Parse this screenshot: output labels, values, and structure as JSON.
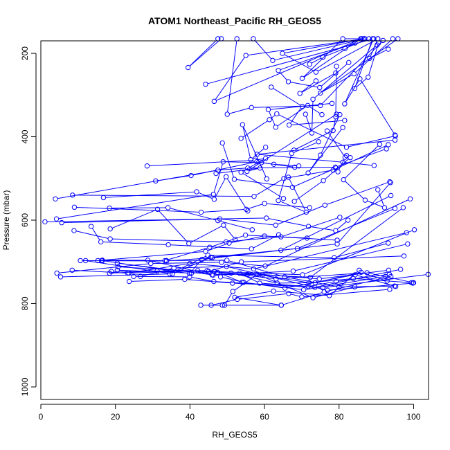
{
  "chart_data": {
    "type": "line",
    "title": "ATOM1 Northeast_Pacific RH_GEOS5",
    "xlabel": "RH_GEOS5",
    "ylabel": "Pressure (mbar)",
    "xlim": [
      0,
      104
    ],
    "ylim": [
      1030,
      170
    ],
    "y_reversed": true,
    "x_ticks": [
      0,
      20,
      40,
      60,
      80,
      100
    ],
    "y_ticks": [
      200,
      400,
      600,
      800,
      1000
    ],
    "grid": false,
    "legend": "none",
    "color": "#0000ff",
    "marker": "open-circle",
    "series": [
      {
        "x": [
          47.5,
          39.5,
          48.4
        ],
        "y": [
          165,
          234,
          165
        ]
      },
      {
        "x": [
          86.9,
          62.2,
          57.0
        ],
        "y": [
          165,
          217,
          165
        ]
      },
      {
        "x": [
          93.2,
          88.2,
          90.4
        ],
        "y": [
          190,
          212,
          165
        ]
      },
      {
        "x": [
          86.4,
          64.8,
          73.8,
          90.4
        ],
        "y": [
          165,
          200,
          245,
          165
        ]
      },
      {
        "x": [
          88.0,
          81.6,
          75.7,
          72.1
        ],
        "y": [
          165,
          188,
          209,
          226
        ]
      },
      {
        "x": [
          85.8,
          70.1,
          81.0,
          86.8
        ],
        "y": [
          165,
          260,
          165,
          165
        ]
      },
      {
        "x": [
          86.0,
          46.5,
          55.0,
          86.8
        ],
        "y": [
          165,
          315,
          205,
          165
        ]
      },
      {
        "x": [
          84.3,
          63.7,
          66.4,
          74.8,
          82.6
        ],
        "y": [
          175,
          241,
          268,
          282,
          222
        ]
      },
      {
        "x": [
          95.8,
          75.0,
          84.0,
          94.4
        ],
        "y": [
          165,
          295,
          249,
          165
        ]
      },
      {
        "x": [
          52.6,
          50.0,
          56.5,
          75.0,
          91.8
        ],
        "y": [
          165,
          346,
          330,
          325,
          169
        ]
      },
      {
        "x": [
          79.1,
          69.5,
          73.8
        ],
        "y": [
          247,
          296,
          266
        ]
      },
      {
        "x": [
          90.2,
          73.0,
          72.7,
          71.0
        ],
        "y": [
          180,
          310,
          391,
          346
        ]
      },
      {
        "x": [
          89.0,
          84.2,
          87.8,
          90.6
        ],
        "y": [
          165,
          284,
          257,
          175
        ]
      },
      {
        "x": [
          79.3,
          79.1,
          78.4,
          67.9
        ],
        "y": [
          231,
          352,
          385,
          432
        ]
      },
      {
        "x": [
          44.2,
          89.3,
          81.5,
          85.6,
          95.0
        ],
        "y": [
          274,
          165,
          321,
          261,
          396
        ]
      },
      {
        "x": [
          61.8,
          70.1,
          66.6,
          81.5
        ],
        "y": [
          281,
          327,
          372,
          361
        ]
      },
      {
        "x": [
          78.1,
          61.0,
          63.0,
          71.6,
          75.4
        ],
        "y": [
          320,
          335,
          377,
          325,
          347
        ]
      },
      {
        "x": [
          80.2,
          75.0,
          71.7,
          81.0
        ],
        "y": [
          347,
          444,
          487,
          378
        ]
      },
      {
        "x": [
          60.3,
          56.3,
          54.1,
          60.6
        ],
        "y": [
          425,
          455,
          371,
          501
        ]
      },
      {
        "x": [
          95.1,
          82.0,
          63.3,
          61.3,
          53.7
        ],
        "y": [
          398,
          425,
          345,
          359,
          404
        ]
      },
      {
        "x": [
          95.0,
          58.0,
          81.0,
          89.4
        ],
        "y": [
          408,
          442,
          461,
          469
        ]
      },
      {
        "x": [
          48.7,
          51.9,
          67.5,
          79.2
        ],
        "y": [
          415,
          502,
          521,
          475
        ]
      },
      {
        "x": [
          47.0,
          58.8,
          55.3,
          79.3
        ],
        "y": [
          488,
          475,
          483,
          346
        ]
      },
      {
        "x": [
          76.8,
          81.6,
          79.7
        ],
        "y": [
          386,
          449,
          484
        ]
      },
      {
        "x": [
          82.0,
          83.0,
          75.8,
          68.0
        ],
        "y": [
          445,
          450,
          505,
          555
        ]
      },
      {
        "x": [
          90.9,
          81.2,
          87.0,
          92.2,
          90.4
        ],
        "y": [
          418,
          503,
          552,
          570,
          527
        ]
      },
      {
        "x": [
          74.5,
          67.3,
          63.7,
          71.2,
          66.4
        ],
        "y": [
          412,
          440,
          553,
          581,
          497
        ]
      },
      {
        "x": [
          28.5,
          57.5,
          60.3,
          53.7,
          65.1
        ],
        "y": [
          470,
          456,
          452,
          485,
          548
        ]
      },
      {
        "x": [
          30.8,
          40.3,
          57.9,
          62.5,
          69.2
        ],
        "y": [
          506,
          493,
          460,
          466,
          470
        ]
      },
      {
        "x": [
          3.9,
          47.5,
          55.5,
          79.0,
          92.7
        ],
        "y": [
          549,
          480,
          475,
          473,
          429
        ]
      },
      {
        "x": [
          8.5,
          57.2,
          65.2,
          78.4,
          93.2
        ],
        "y": [
          540,
          543,
          500,
          480,
          419
        ]
      },
      {
        "x": [
          4.2,
          46.3,
          48.9,
          59.2,
          68.1
        ],
        "y": [
          597,
          538,
          460,
          462,
          473
        ]
      },
      {
        "x": [
          9.0,
          43.0,
          55.1,
          60.0,
          72.1
        ],
        "y": [
          569,
          581,
          574,
          560,
          570
        ]
      },
      {
        "x": [
          16.8,
          41.8,
          46.5,
          49.7,
          55.5
        ],
        "y": [
          546,
          532,
          550,
          496,
          578
        ]
      },
      {
        "x": [
          1.1,
          60.5,
          71.8,
          79.1,
          82.4
        ],
        "y": [
          604,
          595,
          615,
          625,
          600
        ]
      },
      {
        "x": [
          5.6,
          48.0,
          63.0,
          76.2,
          93.6
        ],
        "y": [
          606,
          597,
          612,
          564,
          508
        ]
      },
      {
        "x": [
          18.4,
          34.1,
          47.5,
          56.7
        ],
        "y": [
          571,
          570,
          601,
          623
        ]
      },
      {
        "x": [
          18.6,
          31.3,
          39.7,
          49.0,
          52.1
        ],
        "y": [
          621,
          574,
          656,
          612,
          646
        ]
      },
      {
        "x": [
          8.9,
          18.6,
          49.7,
          64.4,
          80.2
        ],
        "y": [
          625,
          645,
          652,
          640,
          593
        ]
      },
      {
        "x": [
          13.5,
          16.1,
          34.2,
          56.5,
          63.8
        ],
        "y": [
          615,
          652,
          659,
          669,
          635
        ]
      },
      {
        "x": [
          15.3,
          44.2,
          50.5,
          60.0,
          79.5
        ],
        "y": [
          697,
          675,
          655,
          638,
          648
        ]
      },
      {
        "x": [
          16.3,
          33.3,
          45.3,
          54.9,
          71.4
        ],
        "y": [
          697,
          697,
          665,
          636,
          643
        ]
      },
      {
        "x": [
          10.6,
          33.7,
          46.0,
          68.8,
          95.0
        ],
        "y": [
          697,
          698,
          690,
          668,
          572
        ]
      },
      {
        "x": [
          12.0,
          35.3,
          45.6,
          64.4,
          93.9
        ],
        "y": [
          697,
          729,
          689,
          672,
          541
        ]
      },
      {
        "x": [
          16.5,
          39.9,
          43.2,
          79.5,
          93.8
        ],
        "y": [
          697,
          728,
          694,
          657,
          510
        ]
      },
      {
        "x": [
          5.3,
          34.6,
          44.8,
          78.7,
          93.2
        ],
        "y": [
          736,
          729,
          684,
          690,
          655
        ]
      },
      {
        "x": [
          4.3,
          29.5,
          48.5,
          60.2,
          99.1
        ],
        "y": [
          727,
          704,
          701,
          710,
          549
        ]
      },
      {
        "x": [
          8.4,
          23.3,
          40.0,
          57.1,
          98.1
        ],
        "y": [
          720,
          727,
          704,
          717,
          630
        ]
      },
      {
        "x": [
          18.4,
          31.2,
          45.0,
          53.8,
          97.4
        ],
        "y": [
          727,
          722,
          723,
          700,
          686
        ]
      },
      {
        "x": [
          20.5,
          40.4,
          46.5,
          70.2,
          100.2
        ],
        "y": [
          720,
          727,
          723,
          731,
          623
        ]
      },
      {
        "x": [
          16.5,
          28.7,
          46.2,
          67.7,
          98.4
        ],
        "y": [
          696,
          696,
          732,
          722,
          657
        ]
      },
      {
        "x": [
          23.6,
          42.1,
          55.4,
          72.3,
          97.2
        ],
        "y": [
          727,
          721,
          730,
          737,
          570
        ]
      },
      {
        "x": [
          20.5,
          45.9,
          57.8,
          74.7,
          93.3
        ],
        "y": [
          703,
          731,
          729,
          741,
          720
        ]
      },
      {
        "x": [
          24.9,
          39.9,
          46.4,
          73.5,
          96.5
        ],
        "y": [
          735,
          736,
          747,
          761,
          718
        ]
      },
      {
        "x": [
          26.7,
          35.7,
          49.8,
          76.9,
          99.8
        ],
        "y": [
          735,
          715,
          711,
          768,
          751
        ]
      },
      {
        "x": [
          23.7,
          38.6,
          51.4,
          75.6,
          103.9
        ],
        "y": [
          747,
          742,
          751,
          762,
          730
        ]
      },
      {
        "x": [
          33.7,
          49.9,
          65.4,
          80.0,
          94.9
        ],
        "y": [
          697,
          696,
          736,
          760,
          758
        ]
      },
      {
        "x": [
          20.7,
          47.4,
          54.0,
          70.5,
          92.4
        ],
        "y": [
          712,
          725,
          749,
          767,
          735
        ]
      },
      {
        "x": [
          18.9,
          44.6,
          63.1,
          87.5,
          100.0
        ],
        "y": [
          723,
          721,
          741,
          726,
          750
        ]
      },
      {
        "x": [
          47.2,
          59.4,
          71.9,
          83.8,
          99.4
        ],
        "y": [
          727,
          732,
          750,
          740,
          750
        ]
      },
      {
        "x": [
          51.0,
          63.4,
          73.6,
          85.9,
          92.9
        ],
        "y": [
          727,
          751,
          750,
          725,
          746
        ]
      },
      {
        "x": [
          53.3,
          58.7,
          71.7,
          79.2,
          93.5
        ],
        "y": [
          727,
          751,
          759,
          747,
          730
        ]
      },
      {
        "x": [
          48.2,
          54.4,
          65.5,
          84.3,
          95.2
        ],
        "y": [
          736,
          749,
          763,
          731,
          759
        ]
      },
      {
        "x": [
          42.9,
          48.7,
          64.5,
          76.0,
          93.9
        ],
        "y": [
          804,
          804,
          804,
          772,
          735
        ]
      },
      {
        "x": [
          45.7,
          52.7,
          66.5,
          70.0,
          93.6
        ],
        "y": [
          804,
          790,
          776,
          784,
          766
        ]
      },
      {
        "x": [
          49.3,
          51.5,
          58.1,
          73.0,
          84.2
        ],
        "y": [
          804,
          771,
          730,
          786,
          760
        ]
      },
      {
        "x": [
          64.5,
          52.0,
          62.4,
          77.4,
          85.4
        ],
        "y": [
          804,
          785,
          770,
          781,
          720
        ]
      }
    ]
  }
}
